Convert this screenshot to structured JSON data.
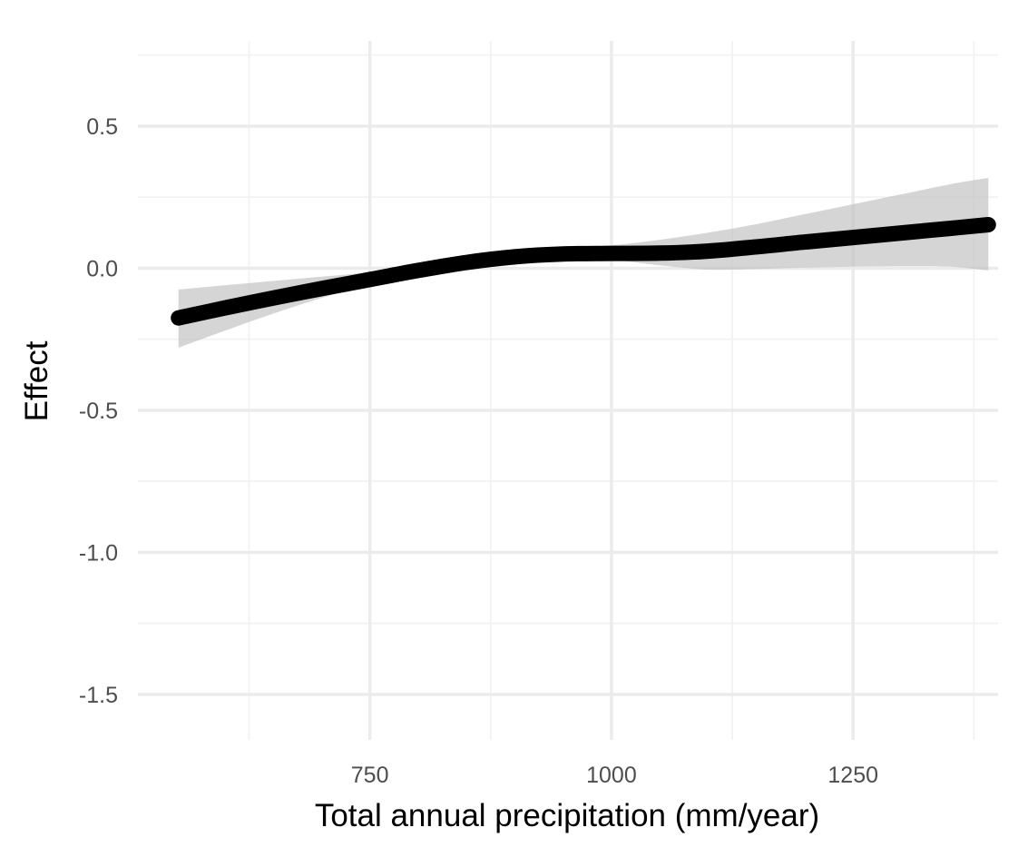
{
  "chart_data": {
    "type": "line",
    "xlabel": "Total annual precipitation (mm/year)",
    "ylabel": "Effect",
    "xlim": [
      510,
      1400
    ],
    "ylim": [
      -1.66,
      0.8
    ],
    "x_ticks": [
      750,
      1000,
      1250
    ],
    "x_tick_labels": [
      "750",
      "1000",
      "1250"
    ],
    "x_minor_ticks": [
      625,
      875,
      1125,
      1375
    ],
    "y_ticks": [
      0.5,
      0.0,
      -0.5,
      -1.0,
      -1.5
    ],
    "y_tick_labels": [
      "0.5",
      "0.0",
      "-0.5",
      "-1.0",
      "-1.5"
    ],
    "y_minor_ticks": [
      0.75,
      0.25,
      -0.25,
      -0.75,
      -1.25
    ],
    "grid": true,
    "legend": "none",
    "colors": {
      "line": "#000000",
      "ribbon": "#bfbfbf",
      "grid": "#ebebeb"
    },
    "series": [
      {
        "x": [
          552,
          600,
          650,
          700,
          750,
          800,
          850,
          900,
          950,
          1000,
          1050,
          1100,
          1150,
          1200,
          1250,
          1300,
          1350,
          1390
        ],
        "y": [
          -0.175,
          -0.14,
          -0.105,
          -0.072,
          -0.04,
          -0.008,
          0.02,
          0.04,
          0.05,
          0.052,
          0.053,
          0.06,
          0.075,
          0.092,
          0.108,
          0.124,
          0.14,
          0.153
        ],
        "ymin": [
          -0.28,
          -0.22,
          -0.16,
          -0.105,
          -0.055,
          -0.015,
          0.01,
          0.03,
          0.04,
          0.03,
          0.01,
          -0.005,
          -0.003,
          0.002,
          0.005,
          0.007,
          0.005,
          -0.008
        ],
        "ymax": [
          -0.075,
          -0.06,
          -0.045,
          -0.03,
          -0.015,
          0.005,
          0.03,
          0.05,
          0.065,
          0.08,
          0.1,
          0.125,
          0.155,
          0.19,
          0.225,
          0.26,
          0.295,
          0.318
        ]
      }
    ]
  }
}
